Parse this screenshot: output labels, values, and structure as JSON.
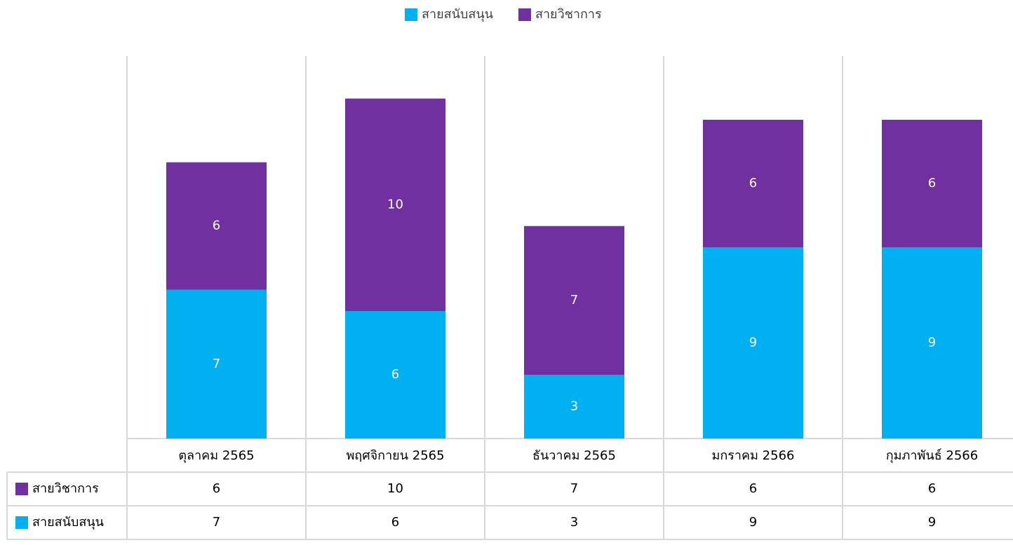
{
  "chart_data": {
    "type": "stacked_bar",
    "categories": [
      "ตุลาคม 2565",
      "พฤศจิกายน 2565",
      "ธันวาคม 2565",
      "มกราคม 2566",
      "กุมภาพันธ์ 2566"
    ],
    "series": [
      {
        "name": "สายสนับสนุน",
        "color": "#00b0f0",
        "values": [
          7,
          6,
          3,
          9,
          9
        ]
      },
      {
        "name": "สายวิชาการ",
        "color": "#7030a0",
        "values": [
          6,
          10,
          7,
          6,
          6
        ]
      }
    ],
    "ylim": [
      0,
      18
    ],
    "legend": "top",
    "data_table": true
  }
}
